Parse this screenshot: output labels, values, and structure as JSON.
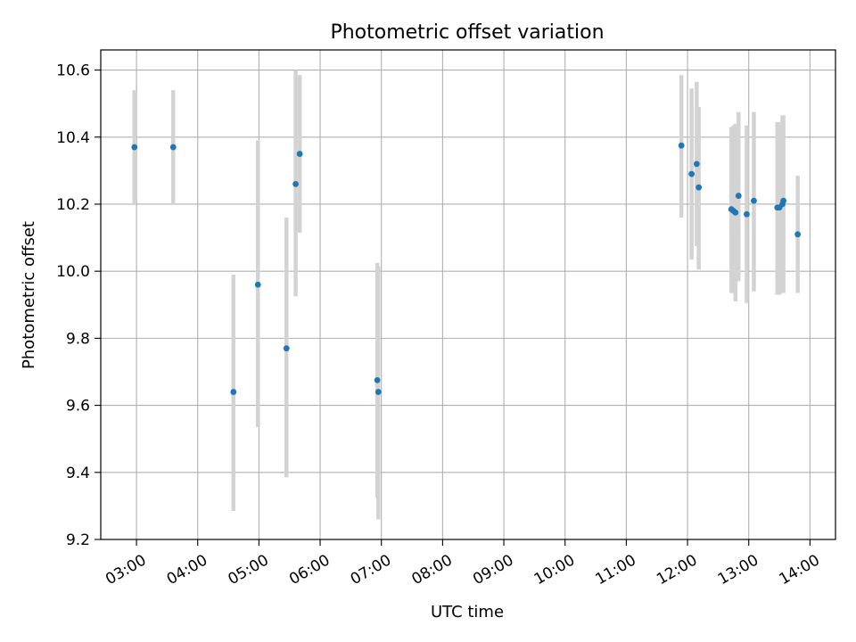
{
  "chart_data": {
    "type": "scatter",
    "title": "Photometric offset variation",
    "xlabel": "UTC time",
    "ylabel": "Photometric offset",
    "x_axis_type": "time",
    "xlim": [
      "02:25",
      "14:25"
    ],
    "ylim": [
      9.2,
      10.66
    ],
    "x_ticks": [
      "03:00",
      "04:00",
      "05:00",
      "06:00",
      "07:00",
      "08:00",
      "09:00",
      "10:00",
      "11:00",
      "12:00",
      "13:00",
      "14:00"
    ],
    "y_ticks": [
      "9.2",
      "9.4",
      "9.6",
      "9.8",
      "10.0",
      "10.2",
      "10.4",
      "10.6"
    ],
    "grid": true,
    "marker_color": "#1f77b4",
    "errorbar_color": "#d3d3d3",
    "points": [
      {
        "x": "02:58",
        "y": 10.37,
        "y_low": 10.2,
        "y_high": 10.54
      },
      {
        "x": "03:36",
        "y": 10.37,
        "y_low": 10.2,
        "y_high": 10.54
      },
      {
        "x": "04:35",
        "y": 9.64,
        "y_low": 9.285,
        "y_high": 9.99
      },
      {
        "x": "04:59",
        "y": 9.96,
        "y_low": 9.535,
        "y_high": 10.39
      },
      {
        "x": "05:27",
        "y": 9.77,
        "y_low": 9.385,
        "y_high": 10.16
      },
      {
        "x": "05:36",
        "y": 10.26,
        "y_low": 9.925,
        "y_high": 10.6
      },
      {
        "x": "05:40",
        "y": 10.35,
        "y_low": 10.115,
        "y_high": 10.585
      },
      {
        "x": "06:56",
        "y": 9.675,
        "y_low": 9.325,
        "y_high": 10.025
      },
      {
        "x": "06:57",
        "y": 9.64,
        "y_low": 9.26,
        "y_high": 10.015
      },
      {
        "x": "11:54",
        "y": 10.375,
        "y_low": 10.16,
        "y_high": 10.585
      },
      {
        "x": "12:04",
        "y": 10.29,
        "y_low": 10.035,
        "y_high": 10.545
      },
      {
        "x": "12:09",
        "y": 10.32,
        "y_low": 10.075,
        "y_high": 10.565
      },
      {
        "x": "12:11",
        "y": 10.25,
        "y_low": 10.005,
        "y_high": 10.49
      },
      {
        "x": "12:43",
        "y": 10.185,
        "y_low": 9.935,
        "y_high": 10.43
      },
      {
        "x": "12:45",
        "y": 10.18,
        "y_low": 9.935,
        "y_high": 10.435
      },
      {
        "x": "12:47",
        "y": 10.175,
        "y_low": 9.91,
        "y_high": 10.44
      },
      {
        "x": "12:50",
        "y": 10.225,
        "y_low": 9.97,
        "y_high": 10.475
      },
      {
        "x": "12:58",
        "y": 10.17,
        "y_low": 9.905,
        "y_high": 10.435
      },
      {
        "x": "13:05",
        "y": 10.21,
        "y_low": 9.94,
        "y_high": 10.475
      },
      {
        "x": "13:28",
        "y": 10.19,
        "y_low": 9.93,
        "y_high": 10.445
      },
      {
        "x": "13:30",
        "y": 10.19,
        "y_low": 9.93,
        "y_high": 10.445
      },
      {
        "x": "13:33",
        "y": 10.2,
        "y_low": 9.935,
        "y_high": 10.465
      },
      {
        "x": "13:34",
        "y": 10.21,
        "y_low": 9.935,
        "y_high": 10.465
      },
      {
        "x": "13:48",
        "y": 10.11,
        "y_low": 9.935,
        "y_high": 10.285
      }
    ]
  }
}
